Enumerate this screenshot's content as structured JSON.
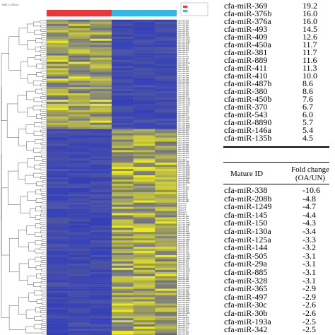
{
  "figure_caption_fragment": "NIB: 1.20014",
  "legend": {
    "group_colors": {
      "group_a": "#e8383d",
      "group_b": "#35b6e4"
    },
    "low_color": "#3440b8",
    "high_color": "#f0ee1a"
  },
  "heatmap": {
    "columns": 6,
    "row_labels": [
      "cfa-miR-26a",
      "cfa-miR-26b",
      "cfa-miR-29a",
      "cfa-miR-29b",
      "cfa-miR-30b",
      "cfa-miR-30c",
      "cfa-miR-30d",
      "cfa-miR-30e",
      "cfa-miR-1249",
      "cfa-miR-1306",
      "cfa-miR-1839",
      "cfa-miR-218",
      "cfa-miR-221",
      "cfa-miR-222",
      "cfa-miR-223",
      "cfa-miR-24",
      "cfa-miR-25",
      "cfa-miR-27a",
      "cfa-miR-27b",
      "cfa-miR-28",
      "cfa-miR-301a",
      "cfa-miR-32",
      "cfa-miR-324",
      "cfa-miR-328",
      "cfa-miR-331",
      "cfa-miR-335",
      "cfa-miR-338",
      "cfa-miR-339",
      "cfa-miR-340",
      "cfa-miR-342",
      "cfa-miR-345",
      "cfa-miR-34a",
      "cfa-miR-34c",
      "cfa-miR-361",
      "cfa-miR-365",
      "cfa-miR-369",
      "cfa-miR-370",
      "cfa-miR-374a",
      "cfa-miR-374b",
      "cfa-miR-376a",
      "cfa-miR-376b",
      "cfa-miR-380",
      "cfa-miR-381",
      "cfa-miR-409",
      "cfa-miR-410",
      "cfa-miR-411",
      "cfa-miR-423a",
      "cfa-miR-424",
      "cfa-miR-425",
      "cfa-miR-450a",
      "cfa-miR-450b",
      "cfa-miR-487b",
      "cfa-miR-493",
      "cfa-miR-497",
      "cfa-miR-505",
      "cfa-miR-532",
      "cfa-miR-543",
      "cfa-miR-574",
      "cfa-miR-576",
      "cfa-miR-582",
      "cfa-miR-590",
      "cfa-miR-652",
      "cfa-miR-660",
      "cfa-miR-665",
      "cfa-miR-671",
      "cfa-miR-676",
      "cfa-miR-7",
      "cfa-miR-744",
      "cfa-miR-758",
      "cfa-miR-8832",
      "cfa-miR-8834",
      "cfa-miR-8855",
      "cfa-miR-8859",
      "cfa-miR-8868",
      "cfa-miR-8871",
      "cfa-miR-8884",
      "cfa-miR-889",
      "cfa-miR-8890",
      "cfa-miR-9",
      "cfa-miR-92a",
      "cfa-miR-92b",
      "cfa-miR-93",
      "cfa-miR-95",
      "cfa-miR-96",
      "cfa-miR-98",
      "cfa-miR-99a",
      "cfa-miR-99b",
      "cfa-let-7a",
      "cfa-let-7b",
      "cfa-let-7c",
      "cfa-let-7f",
      "cfa-let-7g",
      "cfa-miR-1",
      "cfa-miR-10a",
      "cfa-miR-10b",
      "cfa-miR-122",
      "cfa-miR-125a",
      "cfa-miR-125b",
      "cfa-miR-126",
      "cfa-miR-127",
      "cfa-miR-128",
      "cfa-miR-130a",
      "cfa-miR-130b",
      "cfa-miR-133a",
      "cfa-miR-135b",
      "cfa-miR-139",
      "cfa-miR-140",
      "cfa-miR-142",
      "cfa-miR-143",
      "cfa-miR-144",
      "cfa-miR-145",
      "cfa-miR-146a",
      "cfa-miR-146b",
      "cfa-miR-148a",
      "cfa-miR-150",
      "cfa-miR-151",
      "cfa-miR-152",
      "cfa-miR-155",
      "cfa-miR-181a",
      "cfa-miR-181b",
      "cfa-miR-181c",
      "cfa-miR-182",
      "cfa-miR-183",
      "cfa-miR-185",
      "cfa-miR-186",
      "cfa-miR-191",
      "cfa-miR-193a",
      "cfa-miR-193b",
      "cfa-miR-194",
      "cfa-miR-195",
      "cfa-miR-196a",
      "cfa-miR-199",
      "cfa-miR-200a",
      "cfa-miR-200b",
      "cfa-miR-200c",
      "cfa-miR-203",
      "cfa-miR-204",
      "cfa-miR-205",
      "cfa-miR-206",
      "cfa-miR-208b",
      "cfa-miR-21",
      "cfa-miR-210",
      "cfa-miR-214",
      "cfa-miR-215",
      "cfa-miR-216a",
      "cfa-miR-217",
      "cfa-miR-219",
      "cfa-miR-22",
      "cfa-miR-23a",
      "cfa-miR-23b"
    ]
  },
  "up_table": {
    "rows": [
      {
        "id": "cfa-miR-369",
        "fc": "19.2"
      },
      {
        "id": "cfa-miR-376b",
        "fc": "16.0"
      },
      {
        "id": "cfa-miR-376a",
        "fc": "16.0"
      },
      {
        "id": "cfa-miR-493",
        "fc": "14.5"
      },
      {
        "id": "cfa-miR-409",
        "fc": "12.6"
      },
      {
        "id": "cfa-miR-450a",
        "fc": "11.7"
      },
      {
        "id": "cfa-miR-381",
        "fc": "11.7"
      },
      {
        "id": "cfa-miR-889",
        "fc": "11.6"
      },
      {
        "id": "cfa-miR-411",
        "fc": "11.3"
      },
      {
        "id": "cfa-miR-410",
        "fc": "10.0"
      },
      {
        "id": "cfa-miR-487b",
        "fc": "8.6"
      },
      {
        "id": "cfa-miR-380",
        "fc": "8.6"
      },
      {
        "id": "cfa-miR-450b",
        "fc": "7.6"
      },
      {
        "id": "cfa-miR-370",
        "fc": "6.7"
      },
      {
        "id": "cfa-miR-543",
        "fc": "6.0"
      },
      {
        "id": "cfa-miR-8890",
        "fc": "5.7"
      },
      {
        "id": "cfa-miR-146a",
        "fc": "5.4"
      },
      {
        "id": "cfa-miR-135b",
        "fc": "4.5"
      }
    ]
  },
  "down_table": {
    "header_id": "Mature ID",
    "header_fc_line1": "Fold change",
    "header_fc_line2": "(OA/UN)",
    "rows": [
      {
        "id": "cfa-miR-338",
        "fc": "-10.6"
      },
      {
        "id": "cfa-miR-208b",
        "fc": "-4.8"
      },
      {
        "id": "cfa-miR-1249",
        "fc": "-4.7"
      },
      {
        "id": "cfa-miR-145",
        "fc": "-4.4"
      },
      {
        "id": "cfa-miR-150",
        "fc": "-4.3"
      },
      {
        "id": "cfa-miR-130a",
        "fc": "-3.4"
      },
      {
        "id": "cfa-miR-125a",
        "fc": "-3.3"
      },
      {
        "id": "cfa-miR-144",
        "fc": "-3.2"
      },
      {
        "id": "cfa-miR-505",
        "fc": "-3.1"
      },
      {
        "id": "cfa-miR-29a",
        "fc": "-3.1"
      },
      {
        "id": "cfa-miR-885",
        "fc": "-3.1"
      },
      {
        "id": "cfa-miR-328",
        "fc": "-3.1"
      },
      {
        "id": "cfa-miR-365",
        "fc": "-2.9"
      },
      {
        "id": "cfa-miR-497",
        "fc": "-2.9"
      },
      {
        "id": "cfa-miR-30c",
        "fc": "-2.6"
      },
      {
        "id": "cfa-miR-30b",
        "fc": "-2.6"
      },
      {
        "id": "cfa-miR-193a",
        "fc": "-2.5"
      },
      {
        "id": "cfa-miR-342",
        "fc": "-2.5"
      }
    ]
  },
  "chart_data": {
    "type": "heatmap",
    "columns": 6,
    "column_groups": [
      {
        "color": "#e8383d",
        "columns": [
          0,
          1,
          2
        ]
      },
      {
        "color": "#35b6e4",
        "columns": [
          3,
          4,
          5
        ]
      }
    ],
    "value_range": [
      0,
      1
    ],
    "scale_colors": [
      "#3440b8",
      "#f0ee1a"
    ],
    "up_fold_change": [
      19.2,
      16.0,
      16.0,
      14.5,
      12.6,
      11.7,
      11.7,
      11.6,
      11.3,
      10.0,
      8.6,
      8.6,
      7.6,
      6.7,
      6.0,
      5.7,
      5.4,
      4.5
    ],
    "down_fold_change": [
      -10.6,
      -4.8,
      -4.7,
      -4.4,
      -4.3,
      -3.4,
      -3.3,
      -3.2,
      -3.1,
      -3.1,
      -3.1,
      -3.1,
      -2.9,
      -2.9,
      -2.6,
      -2.6,
      -2.5,
      -2.5
    ]
  }
}
